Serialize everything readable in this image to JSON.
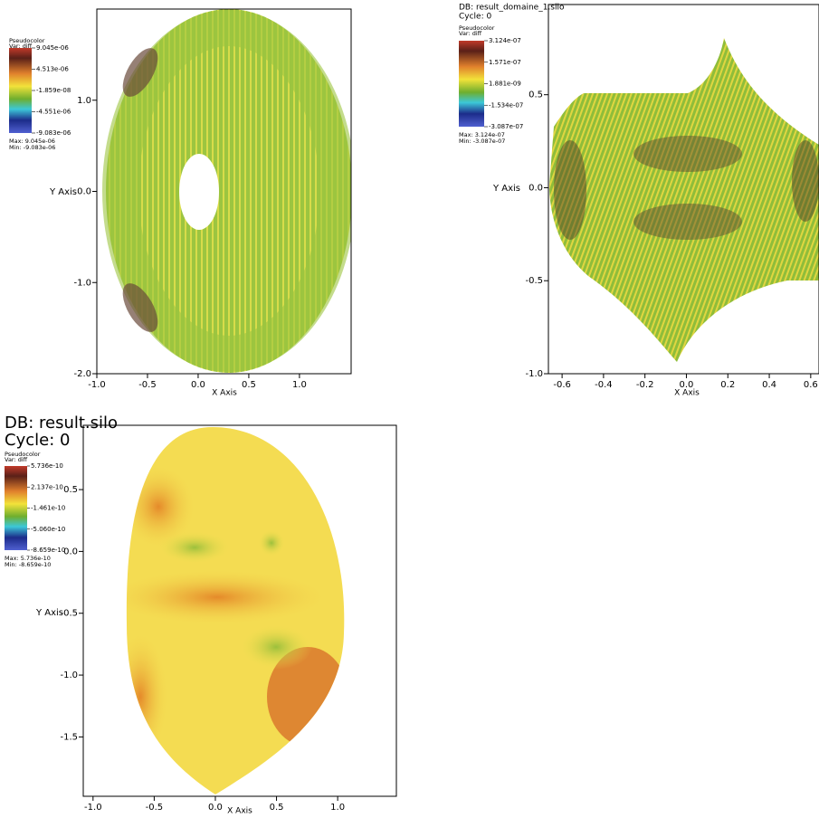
{
  "chart_data": [
    {
      "type": "pseudocolor",
      "legend": {
        "title": "Pseudocolor",
        "var": "Var: diff",
        "labels": [
          "9.045e-06",
          "4.513e-06",
          "-1.859e-08",
          "-4.551e-06",
          "-9.083e-06"
        ],
        "max": "Max:  9.045e-06",
        "min": "Min: -9.083e-06"
      },
      "x_label": "X Axis",
      "y_label": "Y Axis",
      "xlim": [
        -1.0,
        1.51
      ],
      "ylim": [
        -2.0,
        2.0
      ],
      "xticks": [
        {
          "value": -1,
          "label": "-1.0"
        },
        {
          "value": -0.5,
          "label": "-0.5"
        },
        {
          "value": 0,
          "label": "0.0"
        },
        0.5,
        {
          "value": 1,
          "label": "1.0"
        }
      ],
      "yticks": [
        {
          "value": -2,
          "label": "-2.0"
        },
        {
          "value": -1,
          "label": "-1.0"
        },
        {
          "value": 0,
          "label": "0.0"
        },
        {
          "value": 1,
          "label": "1.0"
        }
      ]
    },
    {
      "type": "pseudocolor",
      "title": "DB: result_domaine_1.silo",
      "cycle": "Cycle: 0",
      "legend": {
        "title": "Pseudocolor",
        "var": "Var: diff",
        "labels": [
          "3.124e-07",
          "1.571e-07",
          "1.881e-09",
          "-1.534e-07",
          "-3.087e-07"
        ],
        "max": "Max:  3.124e-07",
        "min": "Min: -3.087e-07"
      },
      "x_label": "X Axis",
      "y_label": "Y Axis",
      "xlim": [
        -0.666,
        0.64
      ],
      "ylim": [
        -1.0,
        0.985
      ],
      "xticks": [
        -0.6,
        -0.4,
        -0.2,
        {
          "value": 0,
          "label": "0.0"
        },
        0.2,
        0.4,
        0.6
      ],
      "yticks": [
        {
          "value": -1,
          "label": "-1.0"
        },
        -0.5,
        {
          "value": 0,
          "label": "0.0"
        },
        0.5
      ]
    },
    {
      "type": "pseudocolor",
      "title": "DB: result.silo",
      "cycle": "Cycle: 0",
      "legend": {
        "title": "Pseudocolor",
        "var": "Var: diff",
        "labels": [
          "5.736e-10",
          "2.137e-10",
          "-1.461e-10",
          "-5.060e-10",
          "-8.659e-10"
        ],
        "max": "Max:  5.736e-10",
        "min": "Min: -8.659e-10"
      },
      "x_label": "X Axis",
      "y_label": "Y Axis",
      "xlim": [
        -1.08,
        1.48
      ],
      "ylim": [
        -1.98,
        1.02
      ],
      "xticks": [
        {
          "value": -1,
          "label": "-1.0"
        },
        -0.5,
        {
          "value": 0,
          "label": "0.0"
        },
        0.5,
        {
          "value": 1,
          "label": "1.0"
        }
      ],
      "yticks": [
        -1.5,
        {
          "value": -1,
          "label": "-1.0"
        },
        -0.5,
        {
          "value": 0,
          "label": "0.0"
        },
        0.5
      ]
    }
  ]
}
